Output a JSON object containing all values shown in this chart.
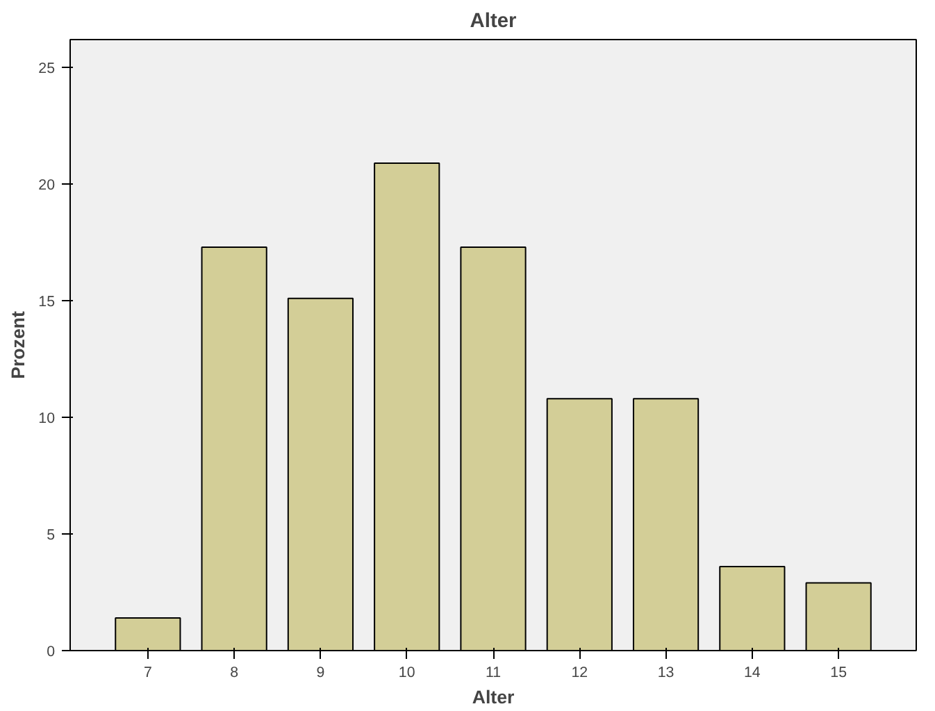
{
  "chart_data": {
    "type": "bar",
    "title": "Alter",
    "xlabel": "Alter",
    "ylabel": "Prozent",
    "categories": [
      "7",
      "8",
      "9",
      "10",
      "11",
      "12",
      "13",
      "14",
      "15"
    ],
    "values": [
      1.4,
      17.3,
      15.1,
      20.9,
      17.3,
      10.8,
      10.8,
      3.6,
      2.9
    ],
    "color": "#d3ce97",
    "ylim": [
      0,
      26.2
    ],
    "yticks": [
      0,
      5,
      10,
      15,
      20,
      25
    ],
    "grid": false
  }
}
